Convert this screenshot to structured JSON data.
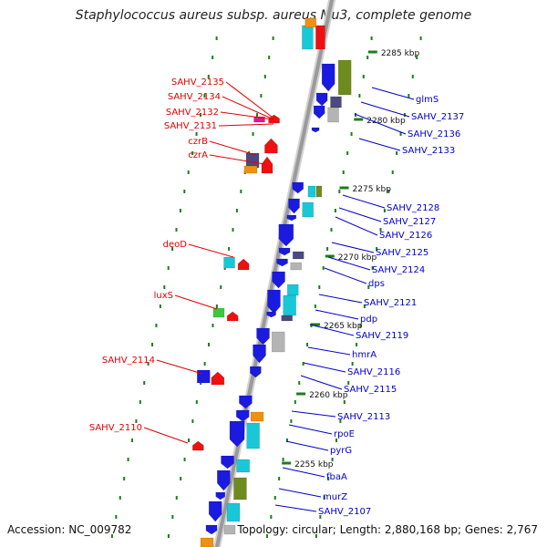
{
  "title": "Staphylococcus aureus subsp. aureus Mu3, complete genome",
  "footer": {
    "accession": "Accession: NC_009782",
    "summary": "Topology: circular; Length: 2,880,168 bp; Genes: 2,767"
  },
  "colors": {
    "left_label": "#e00000",
    "right_label": "#0000cc",
    "backbone": "#9a9a9a",
    "tick": "#1a7f1a"
  },
  "kbp_labels": [
    "2285 kbp",
    "2280 kbp",
    "2275 kbp",
    "2270 kbp",
    "2265 kbp",
    "2260 kbp",
    "2255 kbp"
  ],
  "left_labels": [
    "SAHV_2135",
    "SAHV_2134",
    "SAHV_2132",
    "SAHV_2131",
    "czrB",
    "czrA",
    "deoD",
    "luxS",
    "SAHV_2114",
    "SAHV_2110"
  ],
  "right_labels": [
    "glmS",
    "SAHV_2137",
    "SAHV_2136",
    "SAHV_2133",
    "SAHV_2128",
    "SAHV_2127",
    "SAHV_2126",
    "SAHV_2125",
    "SAHV_2124",
    "dps",
    "SAHV_2121",
    "pdp",
    "SAHV_2119",
    "hmrA",
    "SAHV_2116",
    "SAHV_2115",
    "SAHV_2113",
    "rpoE",
    "pyrG",
    "fbaA",
    "murZ",
    "SAHV_2107"
  ]
}
